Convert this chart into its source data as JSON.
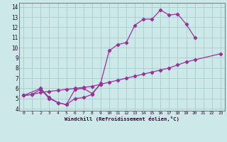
{
  "title": "",
  "xlabel": "Windchill (Refroidissement éolien,°C)",
  "bg_color": "#cce8e8",
  "grid_color": "#aacccc",
  "line_color": "#993399",
  "marker": "D",
  "markersize": 2.2,
  "linewidth": 0.9,
  "xlim": [
    -0.5,
    23.5
  ],
  "ylim": [
    3.8,
    14.4
  ],
  "xticks": [
    0,
    1,
    2,
    3,
    4,
    5,
    6,
    7,
    8,
    9,
    10,
    11,
    12,
    13,
    14,
    15,
    16,
    17,
    18,
    19,
    20,
    21,
    22,
    23
  ],
  "yticks": [
    4,
    5,
    6,
    7,
    8,
    9,
    10,
    11,
    12,
    13,
    14
  ],
  "line1_x": [
    0,
    1,
    2,
    3,
    4,
    5,
    6,
    7,
    8,
    9,
    10,
    11,
    12,
    13,
    14,
    15,
    16,
    17,
    18,
    19,
    20
  ],
  "line1_y": [
    5.3,
    5.4,
    5.9,
    5.0,
    4.6,
    4.4,
    5.0,
    5.1,
    5.4,
    6.5,
    9.7,
    10.3,
    10.5,
    12.2,
    12.8,
    12.8,
    13.7,
    13.2,
    13.3,
    12.3,
    11.0
  ],
  "line2_x": [
    0,
    2,
    3,
    4,
    5,
    6,
    7,
    8,
    9
  ],
  "line2_y": [
    5.3,
    6.0,
    5.1,
    4.6,
    4.4,
    5.9,
    6.0,
    5.5,
    6.4
  ],
  "line3_x": [
    0,
    1,
    2,
    3,
    4,
    5,
    6,
    7,
    8,
    9,
    10,
    11,
    12,
    13,
    14,
    15,
    16,
    17,
    18,
    19,
    20,
    21,
    22,
    23
  ],
  "line3_y": [
    5.3,
    5.4,
    5.6,
    5.7,
    5.8,
    5.9,
    6.0,
    6.1,
    6.2,
    6.4,
    6.6,
    6.8,
    7.0,
    7.2,
    7.4,
    7.6,
    7.8,
    8.0,
    8.3,
    8.6,
    8.8,
    null,
    null,
    9.4
  ]
}
